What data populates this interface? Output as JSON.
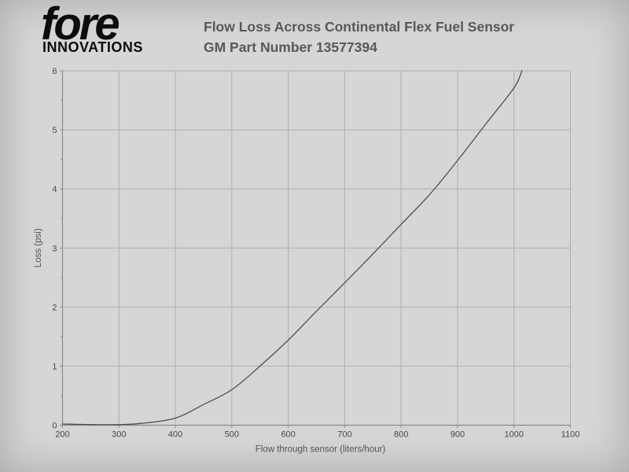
{
  "colors": {
    "page_bg": "#d6d6d6",
    "title": "#58585a",
    "logo": "#0c0c0c"
  },
  "logo": {
    "brand": "fore",
    "sub": "INNOVATIONS"
  },
  "header": {
    "title_line1": "Flow Loss Across Continental Flex Fuel Sensor",
    "title_line2": "GM Part Number 13577394"
  },
  "chart_data": {
    "type": "line",
    "title": "Flow Loss Across Continental Flex Fuel Sensor GM Part Number 13577394",
    "xlabel": "Flow through sensor (liters/hour)",
    "ylabel": "Loss (psi)",
    "xlim": [
      200,
      1100
    ],
    "ylim": [
      0,
      6
    ],
    "x_ticks": [
      200,
      300,
      400,
      500,
      600,
      700,
      800,
      900,
      1000,
      1100
    ],
    "y_ticks": [
      0,
      1,
      2,
      3,
      4,
      5,
      6
    ],
    "y_minor_step": 0.5,
    "grid": true,
    "legend": "none",
    "series": [
      {
        "name": "Flow loss",
        "x": [
          200,
          250,
          300,
          340,
          400,
          450,
          500,
          550,
          600,
          650,
          700,
          750,
          800,
          850,
          900,
          950,
          1000,
          1014
        ],
        "y": [
          0.02,
          0.01,
          0.01,
          0.03,
          0.12,
          0.35,
          0.6,
          1.0,
          1.44,
          1.93,
          2.41,
          2.9,
          3.4,
          3.9,
          4.48,
          5.1,
          5.71,
          6.0
        ]
      }
    ],
    "colors": {
      "grid": "#aeaeae",
      "axis": "#8a8a8a",
      "line": "#4f4f4f",
      "tick_label": "#474747",
      "axis_label": "#545454"
    }
  }
}
